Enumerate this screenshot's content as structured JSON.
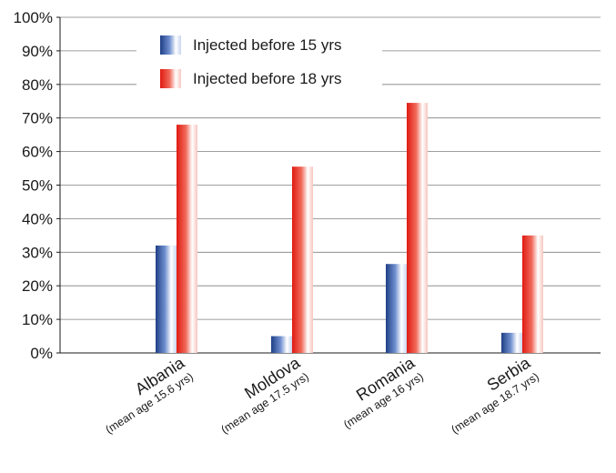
{
  "chart_data": {
    "type": "bar",
    "categories": [
      {
        "name": "Albania",
        "sub": "(mean age 15.6 yrs)"
      },
      {
        "name": "Moldova",
        "sub": "(mean age 17.5 yrs)"
      },
      {
        "name": "Romania",
        "sub": "(mean age 16 yrs)"
      },
      {
        "name": "Serbia",
        "sub": "(mean age 18.7 yrs)"
      }
    ],
    "series": [
      {
        "name": "Injected before 15 yrs",
        "color": "#2b4f9c",
        "values": [
          32,
          5,
          26.5,
          6
        ]
      },
      {
        "name": "Injected before 18 yrs",
        "color": "#e8281e",
        "values": [
          68,
          55.5,
          74.5,
          35
        ]
      }
    ],
    "y_ticks": [
      "0%",
      "10%",
      "20%",
      "30%",
      "40%",
      "50%",
      "60%",
      "70%",
      "80%",
      "90%",
      "100%"
    ],
    "ylim": [
      0,
      100
    ],
    "grid": true,
    "legend_position": "top-center",
    "title": "",
    "xlabel": "",
    "ylabel": ""
  }
}
